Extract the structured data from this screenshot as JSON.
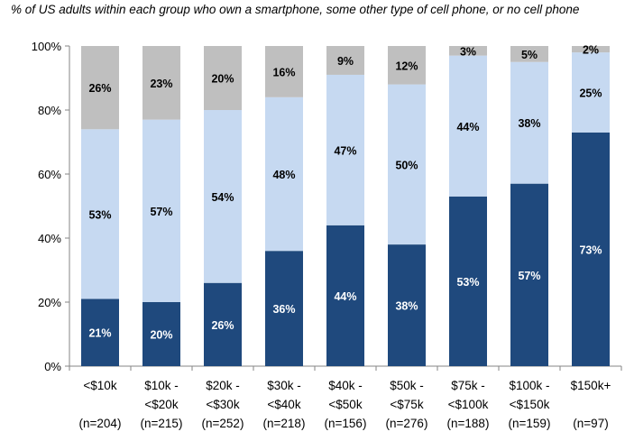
{
  "chart_data": {
    "type": "bar",
    "stacked": true,
    "title": "% of US adults within each group who own a smartphone, some other type of cell phone, or no cell phone",
    "categories": [
      [
        "<$10k",
        "",
        "(n=204)"
      ],
      [
        "$10k -",
        "<$20k",
        "(n=215)"
      ],
      [
        "$20k -",
        "<$30k",
        "(n=252)"
      ],
      [
        "$30k -",
        "<$40k",
        "(n=218)"
      ],
      [
        "$40k -",
        "<$50k",
        "(n=156)"
      ],
      [
        "$50k -",
        "<$75k",
        "(n=276)"
      ],
      [
        "$75k -",
        "<$100k",
        "(n=188)"
      ],
      [
        "$100k -",
        "<$150k",
        "(n=159)"
      ],
      [
        "$150k+",
        "",
        "(n=97)"
      ]
    ],
    "series": [
      {
        "values": [
          21,
          20,
          26,
          36,
          44,
          38,
          53,
          57,
          73
        ],
        "color": "#1f497d",
        "label_color": "#ffffff"
      },
      {
        "values": [
          53,
          57,
          54,
          48,
          47,
          50,
          44,
          38,
          25
        ],
        "color": "#c6d9f1",
        "label_color": "#000000"
      },
      {
        "values": [
          26,
          23,
          20,
          16,
          9,
          12,
          3,
          5,
          2
        ],
        "color": "#bfbfbf",
        "label_color": "#000000"
      }
    ],
    "yticks": [
      "0%",
      "20%",
      "40%",
      "60%",
      "80%",
      "100%"
    ],
    "ylim": [
      0,
      100
    ],
    "grid": false,
    "legend": "none"
  }
}
